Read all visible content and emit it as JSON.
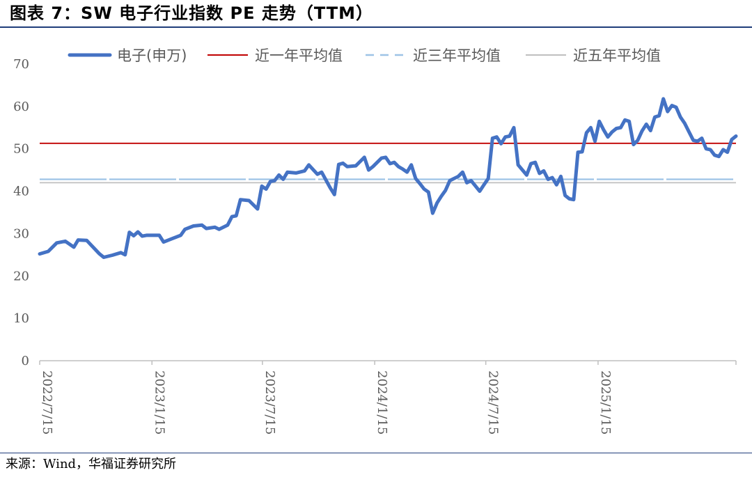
{
  "title": "图表 7：SW 电子行业指数 PE 走势（TTM）",
  "source": "来源：Wind，华福证券研究所",
  "colors": {
    "series": "#4472c4",
    "one_year": "#c00000",
    "three_year": "#9dc3e6",
    "five_year": "#bfbfbf",
    "axis": "#bfbfbf",
    "rule": "#1f3d7a"
  },
  "chart_data": {
    "type": "line",
    "title": "SW 电子行业指数 PE 走势（TTM）",
    "xlabel": "",
    "ylabel": "",
    "ylim": [
      0,
      70
    ],
    "yticks": [
      "0",
      "10",
      "20",
      "30",
      "40",
      "50",
      "60",
      "70"
    ],
    "xlim": [
      "2022-07-15",
      "2025-08-29"
    ],
    "xticks": [
      {
        "date": "2022-07-15",
        "label": "2022/7/15"
      },
      {
        "date": "2023-01-15",
        "label": "2023/1/15"
      },
      {
        "date": "2023-07-15",
        "label": "2023/7/15"
      },
      {
        "date": "2024-01-15",
        "label": "2024/1/15"
      },
      {
        "date": "2024-07-15",
        "label": "2024/7/15"
      },
      {
        "date": "2025-01-15",
        "label": "2025/1/15"
      }
    ],
    "grid": false,
    "legend": "top",
    "series": [
      {
        "name": "电子(申万)",
        "style": "solid-thick",
        "color": "#4472c4",
        "points": [
          [
            "2022-07-15",
            25.2
          ],
          [
            "2022-07-29",
            25.8
          ],
          [
            "2022-08-12",
            27.8
          ],
          [
            "2022-08-26",
            28.2
          ],
          [
            "2022-09-09",
            26.8
          ],
          [
            "2022-09-16",
            28.5
          ],
          [
            "2022-09-30",
            28.4
          ],
          [
            "2022-10-21",
            25.2
          ],
          [
            "2022-10-28",
            24.4
          ],
          [
            "2022-11-11",
            24.9
          ],
          [
            "2022-11-25",
            25.5
          ],
          [
            "2022-12-02",
            25.0
          ],
          [
            "2022-12-09",
            30.3
          ],
          [
            "2022-12-16",
            29.5
          ],
          [
            "2022-12-23",
            30.4
          ],
          [
            "2022-12-30",
            29.4
          ],
          [
            "2023-01-06",
            29.6
          ],
          [
            "2023-01-27",
            29.6
          ],
          [
            "2023-02-03",
            28.0
          ],
          [
            "2023-02-17",
            28.8
          ],
          [
            "2023-03-03",
            29.6
          ],
          [
            "2023-03-10",
            31.0
          ],
          [
            "2023-03-24",
            31.8
          ],
          [
            "2023-04-07",
            32.0
          ],
          [
            "2023-04-14",
            31.2
          ],
          [
            "2023-04-28",
            31.5
          ],
          [
            "2023-05-05",
            31.0
          ],
          [
            "2023-05-19",
            32.0
          ],
          [
            "2023-05-26",
            34.0
          ],
          [
            "2023-06-02",
            34.2
          ],
          [
            "2023-06-09",
            38.0
          ],
          [
            "2023-06-23",
            37.8
          ],
          [
            "2023-07-07",
            35.8
          ],
          [
            "2023-07-14",
            41.2
          ],
          [
            "2023-07-21",
            40.5
          ],
          [
            "2023-07-28",
            42.3
          ],
          [
            "2023-08-04",
            42.5
          ],
          [
            "2023-08-11",
            43.8
          ],
          [
            "2023-08-18",
            42.8
          ],
          [
            "2023-08-25",
            44.5
          ],
          [
            "2023-09-08",
            44.3
          ],
          [
            "2023-09-22",
            44.8
          ],
          [
            "2023-09-29",
            46.2
          ],
          [
            "2023-10-13",
            44.0
          ],
          [
            "2023-10-20",
            44.5
          ],
          [
            "2023-11-03",
            40.8
          ],
          [
            "2023-11-10",
            39.2
          ],
          [
            "2023-11-17",
            46.3
          ],
          [
            "2023-11-24",
            46.6
          ],
          [
            "2023-12-01",
            45.8
          ],
          [
            "2023-12-15",
            46.0
          ],
          [
            "2023-12-29",
            48.0
          ],
          [
            "2024-01-05",
            45.0
          ],
          [
            "2024-01-12",
            45.8
          ],
          [
            "2024-01-19",
            46.8
          ],
          [
            "2024-01-26",
            47.8
          ],
          [
            "2024-02-02",
            48.0
          ],
          [
            "2024-02-09",
            46.5
          ],
          [
            "2024-02-16",
            46.8
          ],
          [
            "2024-02-23",
            45.8
          ],
          [
            "2024-03-01",
            45.2
          ],
          [
            "2024-03-08",
            44.5
          ],
          [
            "2024-03-15",
            46.2
          ],
          [
            "2024-03-22",
            43.0
          ],
          [
            "2024-03-29",
            41.8
          ],
          [
            "2024-04-05",
            40.5
          ],
          [
            "2024-04-12",
            39.8
          ],
          [
            "2024-04-19",
            34.8
          ],
          [
            "2024-04-26",
            37.2
          ],
          [
            "2024-05-03",
            38.8
          ],
          [
            "2024-05-10",
            40.2
          ],
          [
            "2024-05-17",
            42.5
          ],
          [
            "2024-05-31",
            43.5
          ],
          [
            "2024-06-07",
            44.5
          ],
          [
            "2024-06-14",
            42.0
          ],
          [
            "2024-06-21",
            42.5
          ],
          [
            "2024-07-05",
            40.0
          ],
          [
            "2024-07-12",
            41.5
          ],
          [
            "2024-07-19",
            43.0
          ],
          [
            "2024-07-26",
            52.5
          ],
          [
            "2024-08-02",
            52.8
          ],
          [
            "2024-08-09",
            51.2
          ],
          [
            "2024-08-16",
            52.8
          ],
          [
            "2024-08-23",
            53.0
          ],
          [
            "2024-08-30",
            55.0
          ],
          [
            "2024-09-06",
            46.2
          ],
          [
            "2024-09-13",
            45.0
          ],
          [
            "2024-09-20",
            43.8
          ],
          [
            "2024-09-27",
            46.5
          ],
          [
            "2024-10-04",
            46.8
          ],
          [
            "2024-10-11",
            44.2
          ],
          [
            "2024-10-18",
            44.8
          ],
          [
            "2024-10-25",
            42.8
          ],
          [
            "2024-11-01",
            43.2
          ],
          [
            "2024-11-08",
            41.5
          ],
          [
            "2024-11-15",
            43.5
          ],
          [
            "2024-11-22",
            39.0
          ],
          [
            "2024-11-29",
            38.2
          ],
          [
            "2024-12-06",
            38.0
          ],
          [
            "2024-12-13",
            49.2
          ],
          [
            "2024-12-20",
            49.3
          ],
          [
            "2024-12-27",
            53.8
          ],
          [
            "2025-01-03",
            55.0
          ],
          [
            "2025-01-10",
            51.8
          ],
          [
            "2025-01-17",
            56.5
          ],
          [
            "2025-01-24",
            54.5
          ],
          [
            "2025-01-31",
            52.8
          ],
          [
            "2025-02-07",
            54.0
          ],
          [
            "2025-02-14",
            54.8
          ],
          [
            "2025-02-21",
            55.0
          ],
          [
            "2025-02-28",
            56.8
          ],
          [
            "2025-03-07",
            56.5
          ],
          [
            "2025-03-14",
            51.0
          ],
          [
            "2025-03-21",
            52.0
          ],
          [
            "2025-03-28",
            54.2
          ],
          [
            "2025-04-04",
            55.8
          ],
          [
            "2025-04-11",
            54.3
          ],
          [
            "2025-04-18",
            57.5
          ],
          [
            "2025-04-25",
            57.8
          ],
          [
            "2025-05-02",
            61.8
          ],
          [
            "2025-05-09",
            58.8
          ],
          [
            "2025-05-16",
            60.2
          ],
          [
            "2025-05-23",
            59.8
          ],
          [
            "2025-05-30",
            57.5
          ],
          [
            "2025-06-06",
            56.0
          ],
          [
            "2025-06-13",
            54.0
          ],
          [
            "2025-06-20",
            52.0
          ],
          [
            "2025-06-27",
            51.8
          ],
          [
            "2025-07-04",
            52.5
          ],
          [
            "2025-07-11",
            50.0
          ],
          [
            "2025-07-18",
            49.8
          ],
          [
            "2025-07-25",
            48.5
          ],
          [
            "2025-08-01",
            48.2
          ],
          [
            "2025-08-08",
            49.8
          ],
          [
            "2025-08-15",
            49.2
          ],
          [
            "2025-08-22",
            52.2
          ],
          [
            "2025-08-29",
            53.0
          ]
        ]
      },
      {
        "name": "近一年平均值",
        "style": "solid-thin",
        "color": "#c00000",
        "value": 51.3
      },
      {
        "name": "近三年平均值",
        "style": "dashed",
        "color": "#9dc3e6",
        "value": 42.8
      },
      {
        "name": "近五年平均值",
        "style": "solid-thin",
        "color": "#bfbfbf",
        "value": 42.0
      }
    ]
  }
}
